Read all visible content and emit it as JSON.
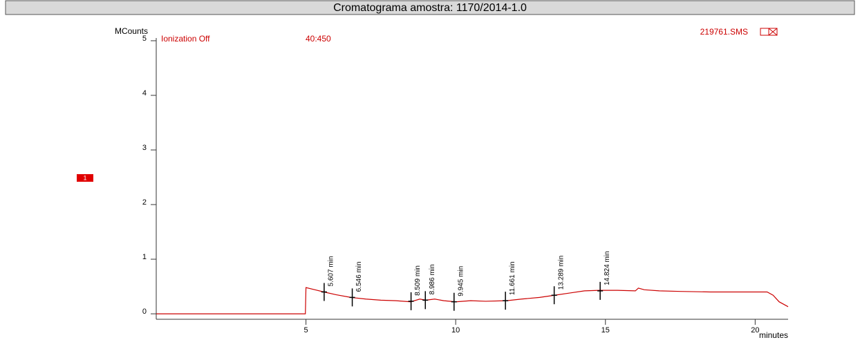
{
  "chart_data": {
    "type": "line",
    "title": "Cromatograma amostra: 1170/2014-1.0",
    "y_label": "MCounts",
    "x_label": "minutes",
    "annotations": {
      "ionization": "Ionization Off",
      "range": "40:450",
      "file": "219761.SMS",
      "trace": "1"
    },
    "xlim": [
      0,
      21.1
    ],
    "ylim": [
      -0.1,
      5.05
    ],
    "xticks": [
      5,
      10,
      15,
      20
    ],
    "yticks": [
      0,
      1,
      2,
      3,
      4,
      5
    ],
    "series": [
      {
        "color": "#cc0000",
        "x": [
          0,
          4.98,
          5.0,
          5.3,
          5.6,
          6.0,
          6.5,
          7.0,
          7.5,
          8.0,
          8.5,
          8.8,
          9.0,
          9.3,
          9.6,
          10.0,
          10.5,
          11.0,
          11.7,
          12.2,
          12.8,
          13.3,
          13.8,
          14.3,
          14.8,
          15.4,
          16.0,
          16.1,
          16.3,
          16.8,
          17.5,
          18.5,
          19.5,
          20.4,
          20.6,
          20.8,
          21.1
        ],
        "values": [
          0,
          0,
          0.48,
          0.44,
          0.4,
          0.35,
          0.3,
          0.27,
          0.25,
          0.24,
          0.22,
          0.27,
          0.25,
          0.27,
          0.24,
          0.22,
          0.24,
          0.23,
          0.24,
          0.27,
          0.3,
          0.34,
          0.38,
          0.42,
          0.43,
          0.43,
          0.42,
          0.47,
          0.44,
          0.42,
          0.41,
          0.4,
          0.4,
          0.4,
          0.34,
          0.22,
          0.13
        ]
      }
    ],
    "peaks": {
      "x": [
        5.607,
        6.546,
        8.509,
        8.986,
        9.945,
        11.661,
        13.289,
        14.824
      ],
      "values": [
        0.4,
        0.3,
        0.23,
        0.25,
        0.22,
        0.24,
        0.34,
        0.42
      ],
      "labels": [
        "5.607 min",
        "6.546 min",
        "8.509 min",
        "8.986 min",
        "9.945 min",
        "11.661 min",
        "13.289 min",
        "14.824 min"
      ]
    }
  }
}
